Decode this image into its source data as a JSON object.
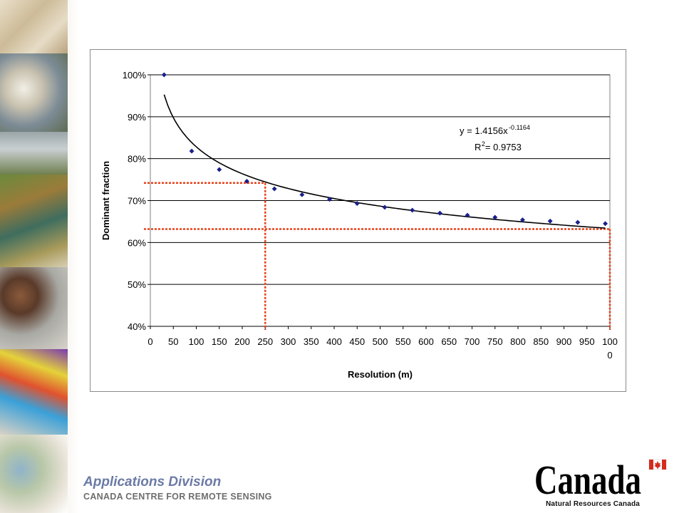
{
  "footer": {
    "division": "Applications Division",
    "centre": "CANADA CENTRE FOR REMOTE SENSING"
  },
  "logo": {
    "wordmark": "Canada",
    "caption": "Natural Resources Canada"
  },
  "chart_data": {
    "type": "scatter",
    "title": "",
    "xlabel": "Resolution (m)",
    "ylabel": "Dominant fraction",
    "xlim": [
      0,
      1000
    ],
    "ylim": [
      0.4,
      1.0
    ],
    "x_ticks": [
      0,
      50,
      100,
      150,
      200,
      250,
      300,
      350,
      400,
      450,
      500,
      550,
      600,
      650,
      700,
      750,
      800,
      850,
      900,
      950,
      1000
    ],
    "x_tick_labels": [
      "0",
      "50",
      "100",
      "150",
      "200",
      "250",
      "300",
      "350",
      "400",
      "450",
      "500",
      "550",
      "600",
      "650",
      "700",
      "750",
      "800",
      "850",
      "900",
      "950",
      "1000"
    ],
    "y_ticks": [
      0.4,
      0.5,
      0.6,
      0.7,
      0.8,
      0.9,
      1.0
    ],
    "y_tick_labels": [
      "40%",
      "50%",
      "60%",
      "70%",
      "80%",
      "90%",
      "100%"
    ],
    "grid": "horizontal",
    "series": [
      {
        "marker": "diamond",
        "color": "#1a1f8c",
        "x": [
          30,
          90,
          150,
          210,
          270,
          330,
          390,
          450,
          510,
          570,
          630,
          690,
          750,
          810,
          870,
          930,
          990
        ],
        "y": [
          1.0,
          0.818,
          0.774,
          0.746,
          0.728,
          0.714,
          0.703,
          0.693,
          0.684,
          0.677,
          0.67,
          0.665,
          0.66,
          0.654,
          0.651,
          0.648,
          0.645
        ]
      }
    ],
    "trendline": {
      "type": "power",
      "a": 1.4156,
      "b": -0.1164,
      "x_range": [
        30,
        990
      ],
      "color": "#000000",
      "equation_prefix": "y = 1.4156x",
      "equation_exponent": "-0.1164",
      "r2_prefix": "R",
      "r2_suffix": " = 0.9753"
    },
    "reference_lines": {
      "color": "#e8421a",
      "style": "dotted",
      "points": [
        {
          "x": 250,
          "y": 0.742
        },
        {
          "x": 1000,
          "y": 0.632
        }
      ]
    }
  }
}
